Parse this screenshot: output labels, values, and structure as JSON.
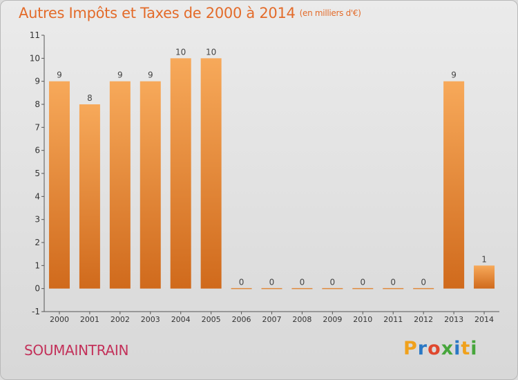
{
  "header": {
    "title": "Autres Impôts et Taxes de 2000 à 2014",
    "unit": "(en milliers d'€)"
  },
  "footer": {
    "commune": "SOUMAINTRAIN",
    "logo_letters": [
      "P",
      "r",
      "o",
      "x",
      "i",
      "t",
      "i"
    ],
    "logo_colors": [
      "#f0a11c",
      "#2a78c5",
      "#e0482e",
      "#47a63c",
      "#2a78c5",
      "#f0a11c",
      "#47a63c"
    ]
  },
  "chart_data": {
    "type": "bar",
    "title": "Autres Impôts et Taxes de 2000 à 2014",
    "subtitle": "(en milliers d'€)",
    "categories": [
      "2000",
      "2001",
      "2002",
      "2003",
      "2004",
      "2005",
      "2006",
      "2007",
      "2008",
      "2009",
      "2010",
      "2011",
      "2012",
      "2013",
      "2014"
    ],
    "values": [
      9,
      8,
      9,
      9,
      10,
      10,
      0,
      0,
      0,
      0,
      0,
      0,
      0,
      9,
      1
    ],
    "data_labels": [
      "9",
      "8",
      "9",
      "9",
      "10",
      "10",
      "0",
      "0",
      "0",
      "0",
      "0",
      "0",
      "0",
      "9",
      "1"
    ],
    "yticks": [
      "-1",
      "0",
      "1",
      "2",
      "3",
      "4",
      "5",
      "6",
      "7",
      "8",
      "9",
      "10",
      "11"
    ],
    "ylim": [
      -1,
      11
    ],
    "grid": false,
    "bar_color_top": "#f7a95a",
    "bar_color_bottom": "#d06a1c"
  }
}
